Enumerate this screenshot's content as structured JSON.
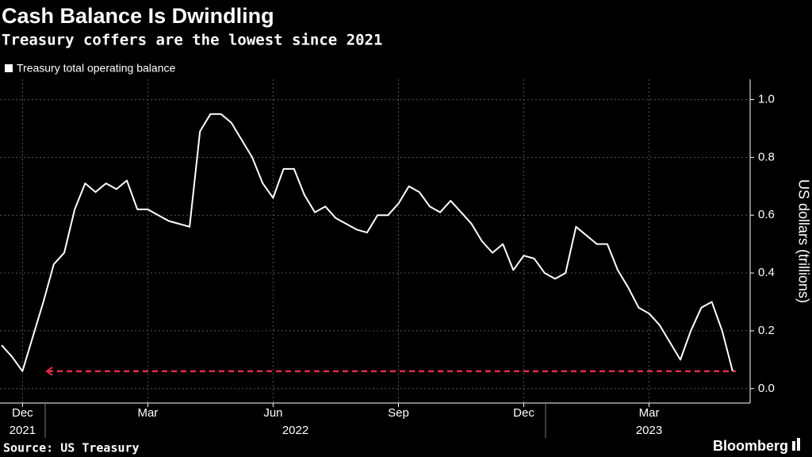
{
  "chart_data": {
    "type": "line",
    "title": "Cash Balance Is Dwindling",
    "subtitle": "Treasury coffers are the lowest since 2021",
    "y_axis_label": "US dollars (trillions)",
    "source": "Source: US Treasury",
    "brand": "Bloomberg",
    "categories": [
      null,
      null,
      "Dec",
      null,
      null,
      null,
      null,
      null,
      null,
      null,
      null,
      null,
      null,
      null,
      "Mar",
      null,
      null,
      null,
      null,
      null,
      null,
      null,
      null,
      null,
      null,
      null,
      "Jun",
      null,
      null,
      null,
      null,
      null,
      null,
      null,
      null,
      null,
      null,
      null,
      "Sep",
      null,
      null,
      null,
      null,
      null,
      null,
      null,
      null,
      null,
      null,
      null,
      "Dec",
      null,
      null,
      null,
      null,
      null,
      null,
      null,
      null,
      null,
      null,
      null,
      "Mar",
      null,
      null,
      null,
      null,
      null,
      null,
      null,
      null
    ],
    "x_year_labels": [
      "2021",
      "2022",
      "2023"
    ],
    "series": [
      {
        "name": "Treasury total operating balance",
        "color": "#ffffff",
        "values": [
          0.15,
          0.11,
          0.06,
          0.18,
          0.3,
          0.43,
          0.47,
          0.62,
          0.71,
          0.68,
          0.71,
          0.69,
          0.72,
          0.62,
          0.62,
          0.6,
          0.58,
          0.57,
          0.56,
          0.89,
          0.95,
          0.95,
          0.92,
          0.86,
          0.8,
          0.71,
          0.66,
          0.76,
          0.76,
          0.67,
          0.61,
          0.63,
          0.59,
          0.57,
          0.55,
          0.54,
          0.6,
          0.6,
          0.64,
          0.7,
          0.68,
          0.63,
          0.61,
          0.65,
          0.61,
          0.57,
          0.51,
          0.47,
          0.5,
          0.41,
          0.46,
          0.45,
          0.4,
          0.38,
          0.4,
          0.56,
          0.53,
          0.5,
          0.5,
          0.41,
          0.35,
          0.28,
          0.26,
          0.22,
          0.16,
          0.1,
          0.2,
          0.28,
          0.3,
          0.2,
          0.06
        ]
      }
    ],
    "reference_line": {
      "value": 0.06,
      "color": "#e8294c"
    },
    "ylim": [
      -0.05,
      1.07
    ],
    "yticks": [
      {
        "value": 0,
        "label": "0.0"
      },
      0.2,
      0.4,
      0.6,
      0.8,
      {
        "value": 1,
        "label": "1.0"
      }
    ],
    "grid": true
  }
}
